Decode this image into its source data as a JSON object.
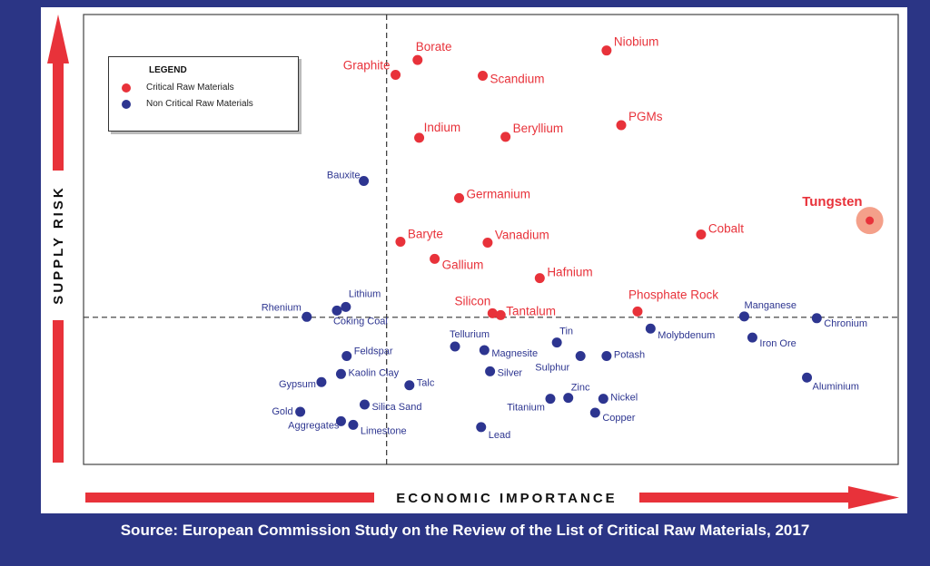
{
  "source_text": "Source: European Commission Study on the Review of the List of Critical Raw Materials, 2017",
  "legend": {
    "title": "LEGEND",
    "critical_label": "Critical Raw Materials",
    "noncritical_label": "Non Critical Raw Materials"
  },
  "colors": {
    "critical": "#e8323a",
    "noncritical": "#2d3590",
    "background": "#2b3585",
    "arrow": "#e8323a"
  },
  "chart_data": {
    "type": "scatter",
    "xlabel": "ECONOMIC IMPORTANCE",
    "ylabel": "SUPPLY RISK",
    "xlim": [
      0,
      100
    ],
    "ylim": [
      0,
      100
    ],
    "threshold_x": 37.2,
    "threshold_y": 32.7,
    "grid": false,
    "legend_position": "top-left",
    "series": [
      {
        "name": "Critical Raw Materials",
        "points": [
          {
            "label": "Borate",
            "x": 41.0,
            "y": 89.9
          },
          {
            "label": "Graphite",
            "x": 38.3,
            "y": 86.6
          },
          {
            "label": "Niobium",
            "x": 64.2,
            "y": 92.0
          },
          {
            "label": "Scandium",
            "x": 49.0,
            "y": 86.4
          },
          {
            "label": "PGMs",
            "x": 66.0,
            "y": 75.4
          },
          {
            "label": "Indium",
            "x": 41.2,
            "y": 72.6
          },
          {
            "label": "Beryllium",
            "x": 51.8,
            "y": 72.8
          },
          {
            "label": "Germanium",
            "x": 46.1,
            "y": 59.2
          },
          {
            "label": "Tungsten",
            "x": 96.5,
            "y": 54.2
          },
          {
            "label": "Cobalt",
            "x": 75.8,
            "y": 51.1
          },
          {
            "label": "Baryte",
            "x": 38.9,
            "y": 49.5
          },
          {
            "label": "Vanadium",
            "x": 49.6,
            "y": 49.3
          },
          {
            "label": "Gallium",
            "x": 43.1,
            "y": 45.7
          },
          {
            "label": "Hafnium",
            "x": 56.0,
            "y": 41.4
          },
          {
            "label": "Silicon",
            "x": 50.2,
            "y": 33.6
          },
          {
            "label": "Tantalum",
            "x": 51.2,
            "y": 33.2
          },
          {
            "label": "Phosphate Rock",
            "x": 68.0,
            "y": 34.0
          }
        ]
      },
      {
        "name": "Non Critical Raw Materials",
        "points": [
          {
            "label": "Bauxite",
            "x": 34.4,
            "y": 63.0
          },
          {
            "label": "Lithium",
            "x": 32.2,
            "y": 35.0
          },
          {
            "label": "Rhenium",
            "x": 27.4,
            "y": 32.8
          },
          {
            "label": "Coking Coal",
            "x": 31.1,
            "y": 34.2
          },
          {
            "label": "Tellurium",
            "x": 45.6,
            "y": 26.2
          },
          {
            "label": "Magnesite",
            "x": 49.2,
            "y": 25.4
          },
          {
            "label": "Tin",
            "x": 58.1,
            "y": 27.1
          },
          {
            "label": "Molybdenum",
            "x": 69.6,
            "y": 30.2
          },
          {
            "label": "Manganese",
            "x": 81.1,
            "y": 32.9
          },
          {
            "label": "Chronium",
            "x": 90.0,
            "y": 32.5
          },
          {
            "label": "Feldspar",
            "x": 32.3,
            "y": 24.1
          },
          {
            "label": "Sulphur",
            "x": 61.0,
            "y": 24.1
          },
          {
            "label": "Potash",
            "x": 64.2,
            "y": 24.1
          },
          {
            "label": "Iron Ore",
            "x": 82.1,
            "y": 28.2
          },
          {
            "label": "Kaolin Clay",
            "x": 31.6,
            "y": 20.1
          },
          {
            "label": "Gypsum",
            "x": 29.2,
            "y": 18.3
          },
          {
            "label": "Talc",
            "x": 40.0,
            "y": 17.6
          },
          {
            "label": "Silver",
            "x": 49.9,
            "y": 20.7
          },
          {
            "label": "Aluminium",
            "x": 88.8,
            "y": 19.3
          },
          {
            "label": "Zinc",
            "x": 59.5,
            "y": 14.8
          },
          {
            "label": "Titanium",
            "x": 57.3,
            "y": 14.6
          },
          {
            "label": "Nickel",
            "x": 63.8,
            "y": 14.6
          },
          {
            "label": "Silica Sand",
            "x": 34.5,
            "y": 13.3
          },
          {
            "label": "Gold",
            "x": 26.6,
            "y": 11.7
          },
          {
            "label": "Copper",
            "x": 62.8,
            "y": 11.5
          },
          {
            "label": "Aggregates",
            "x": 31.6,
            "y": 9.6
          },
          {
            "label": "Limestone",
            "x": 33.1,
            "y": 8.8
          },
          {
            "label": "Lead",
            "x": 48.8,
            "y": 8.3
          }
        ]
      }
    ]
  }
}
